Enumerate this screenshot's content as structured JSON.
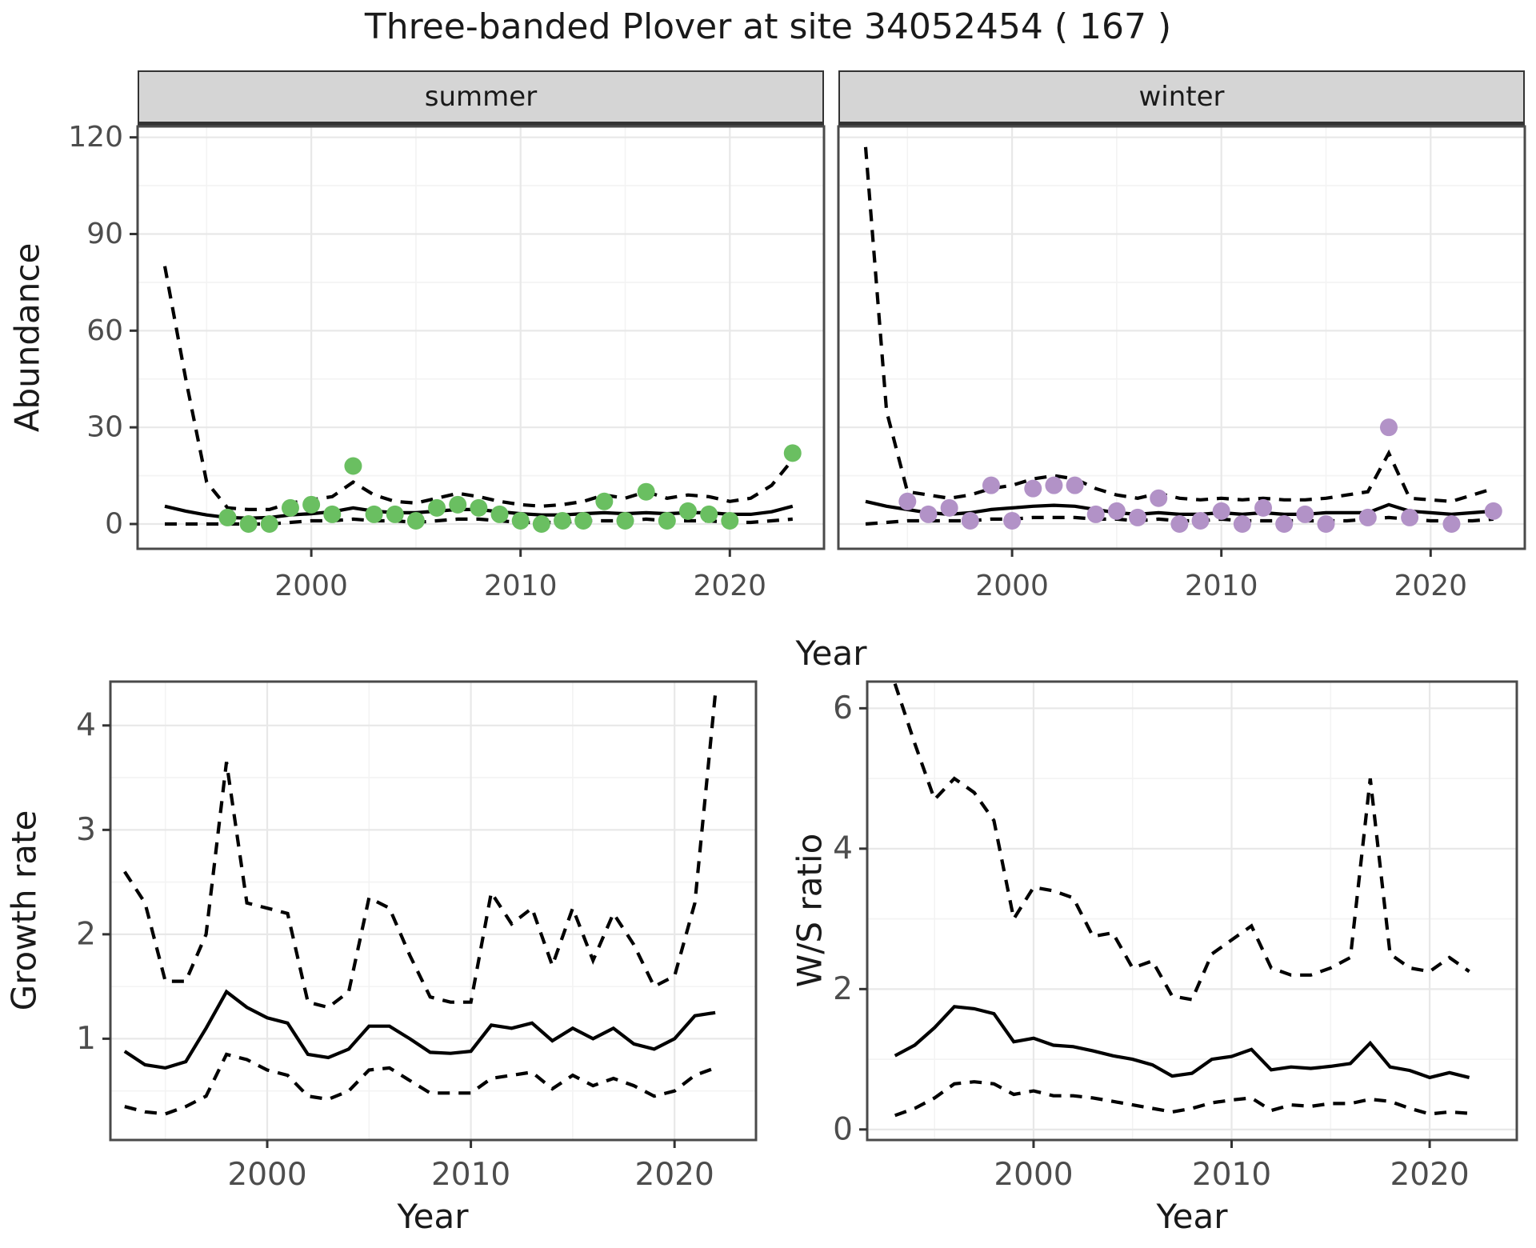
{
  "title": "Three-banded Plover at site 34052454 ( 167 )",
  "colors": {
    "summer_point": "#6ABF61",
    "winter_point": "#B292C7",
    "line": "#000000",
    "strip_bg": "#D5D5D5",
    "strip_border": "#333333",
    "panel_border": "#4A4A4A",
    "grid_major": "#E8E8E8",
    "grid_minor": "#F3F3F3",
    "tick_text": "#4D4D4D",
    "title_text": "#1A1A1A"
  },
  "chart_data": [
    {
      "id": "summer",
      "type": "scatter",
      "facet_label": "summer",
      "title": "Three-banded Plover at site 34052454 ( 167 )",
      "xlabel": "Year",
      "ylabel": "Abundance",
      "xlim": [
        1991.7,
        2024.5
      ],
      "ylim": [
        -7.7,
        123.4
      ],
      "xticks": [
        2000,
        2010,
        2020
      ],
      "yticks": [
        0,
        30,
        60,
        90,
        120
      ],
      "xminor": [
        1995,
        2005,
        2015
      ],
      "yminor": [
        15,
        45,
        75,
        105
      ],
      "grid": true,
      "legend": "none",
      "line_years": [
        1993,
        1994,
        1995,
        1996,
        1997,
        1998,
        1999,
        2000,
        2001,
        2002,
        2003,
        2004,
        2005,
        2006,
        2007,
        2008,
        2009,
        2010,
        2011,
        2012,
        2013,
        2014,
        2015,
        2016,
        2017,
        2018,
        2019,
        2020,
        2021,
        2022,
        2023
      ],
      "median": [
        5.5,
        4,
        2.8,
        2,
        1.8,
        2,
        2.8,
        3.2,
        3.8,
        5,
        4,
        3.5,
        3.5,
        4,
        4.5,
        4.5,
        3.8,
        3.2,
        2.8,
        2.8,
        3.2,
        3.5,
        3.2,
        3.5,
        3.2,
        3.5,
        3.5,
        3,
        3,
        3.8,
        5.5
      ],
      "upper": [
        80,
        45,
        13,
        5,
        4.5,
        4.5,
        6.5,
        7.5,
        8.5,
        13,
        9,
        7,
        6.5,
        8,
        9.5,
        8.5,
        7,
        6,
        5.5,
        6,
        7,
        9,
        8,
        10,
        8,
        9,
        8.5,
        7,
        8,
        12,
        20
      ],
      "lower": [
        0,
        0,
        0,
        0,
        0,
        0,
        0.5,
        1,
        1,
        1.5,
        1,
        1,
        0.5,
        1,
        1.5,
        1.5,
        1,
        0.5,
        0.5,
        0.5,
        1,
        1,
        1,
        1.5,
        1,
        1,
        1,
        0.5,
        0.5,
        1,
        1.5
      ],
      "point_years": [
        1996,
        1997,
        1998,
        1999,
        2000,
        2001,
        2002,
        2003,
        2004,
        2005,
        2006,
        2007,
        2008,
        2009,
        2010,
        2011,
        2012,
        2013,
        2014,
        2015,
        2016,
        2017,
        2018,
        2019,
        2020,
        2023
      ],
      "point_values": [
        2,
        0,
        0,
        5,
        6,
        3,
        18,
        3,
        3,
        1,
        5,
        6,
        5,
        3,
        1,
        0,
        1,
        1,
        7,
        1,
        10,
        1,
        4,
        3,
        1,
        22
      ],
      "point_color_key": "summer_point"
    },
    {
      "id": "winter",
      "type": "scatter",
      "facet_label": "winter",
      "title": "Three-banded Plover at site 34052454 ( 167 )",
      "xlabel": "Year",
      "ylabel": "Abundance",
      "xlim": [
        1991.7,
        2024.5
      ],
      "ylim": [
        -7.7,
        123.4
      ],
      "xticks": [
        2000,
        2010,
        2020
      ],
      "yticks": [
        0,
        30,
        60,
        90,
        120
      ],
      "xminor": [
        1995,
        2005,
        2015
      ],
      "yminor": [
        15,
        45,
        75,
        105
      ],
      "grid": true,
      "legend": "none",
      "line_years": [
        1993,
        1994,
        1995,
        1996,
        1997,
        1998,
        1999,
        2000,
        2001,
        2002,
        2003,
        2004,
        2005,
        2006,
        2007,
        2008,
        2009,
        2010,
        2011,
        2012,
        2013,
        2014,
        2015,
        2016,
        2017,
        2018,
        2019,
        2020,
        2021,
        2022,
        2023
      ],
      "median": [
        7,
        5.5,
        4.5,
        3.5,
        3,
        3.5,
        4.5,
        5,
        5.5,
        5.8,
        5.5,
        4.5,
        3.5,
        3,
        3.5,
        3,
        3,
        3.5,
        3,
        3.5,
        3,
        3,
        3.5,
        3.5,
        3.5,
        6,
        4,
        3.5,
        3,
        3.5,
        4
      ],
      "upper": [
        117,
        35,
        10,
        9,
        8,
        9,
        11,
        12,
        14,
        15,
        14,
        11,
        9,
        8,
        9.5,
        8,
        7.5,
        8,
        7.5,
        8,
        7.5,
        7.5,
        8,
        9,
        10,
        22,
        8,
        7.5,
        7,
        9,
        11
      ],
      "lower": [
        0,
        0.5,
        1,
        1,
        1,
        1,
        1.5,
        1.5,
        2,
        2,
        2,
        1.5,
        1.5,
        1,
        1.5,
        1,
        1,
        1.5,
        1,
        1,
        1,
        1,
        1,
        1,
        1.5,
        2,
        1.5,
        1,
        1,
        1,
        1.5
      ],
      "point_years": [
        1995,
        1996,
        1997,
        1998,
        1999,
        2000,
        2001,
        2002,
        2003,
        2004,
        2005,
        2006,
        2007,
        2008,
        2009,
        2010,
        2011,
        2012,
        2013,
        2014,
        2015,
        2017,
        2018,
        2019,
        2021,
        2023
      ],
      "point_values": [
        7,
        3,
        5,
        1,
        12,
        1,
        11,
        12,
        12,
        3,
        4,
        2,
        8,
        0,
        1,
        4,
        0,
        5,
        0,
        3,
        0,
        2,
        30,
        2,
        0,
        4
      ],
      "point_color_key": "winter_point"
    },
    {
      "id": "growth",
      "type": "line",
      "facet_label": "",
      "title": "",
      "xlabel": "Year",
      "ylabel": "Growth rate",
      "xlim": [
        1992.3,
        2024.0
      ],
      "ylim": [
        0.03,
        4.42
      ],
      "xticks": [
        2000,
        2010,
        2020
      ],
      "yticks": [
        1,
        2,
        3,
        4
      ],
      "xminor": [
        1995,
        2005,
        2015
      ],
      "yminor": [
        0.5,
        1.5,
        2.5,
        3.5
      ],
      "grid": true,
      "legend": "none",
      "line_years": [
        1993,
        1994,
        1995,
        1996,
        1997,
        1998,
        1999,
        2000,
        2001,
        2002,
        2003,
        2004,
        2005,
        2006,
        2007,
        2008,
        2009,
        2010,
        2011,
        2012,
        2013,
        2014,
        2015,
        2016,
        2017,
        2018,
        2019,
        2020,
        2021,
        2022
      ],
      "median": [
        0.88,
        0.75,
        0.72,
        0.78,
        1.1,
        1.45,
        1.3,
        1.2,
        1.15,
        0.85,
        0.82,
        0.9,
        1.12,
        1.12,
        1.0,
        0.87,
        0.86,
        0.88,
        1.13,
        1.1,
        1.15,
        0.98,
        1.1,
        1.0,
        1.1,
        0.95,
        0.9,
        1.0,
        1.22,
        1.25
      ],
      "upper": [
        2.6,
        2.3,
        1.55,
        1.55,
        2.0,
        3.65,
        2.3,
        2.25,
        2.2,
        1.35,
        1.3,
        1.45,
        2.35,
        2.25,
        1.8,
        1.4,
        1.35,
        1.35,
        2.4,
        2.1,
        2.25,
        1.7,
        2.25,
        1.75,
        2.2,
        1.9,
        1.5,
        1.6,
        2.3,
        4.3
      ],
      "lower": [
        0.35,
        0.3,
        0.28,
        0.35,
        0.45,
        0.85,
        0.8,
        0.7,
        0.65,
        0.45,
        0.42,
        0.5,
        0.7,
        0.72,
        0.6,
        0.48,
        0.48,
        0.48,
        0.62,
        0.65,
        0.68,
        0.52,
        0.65,
        0.55,
        0.62,
        0.55,
        0.45,
        0.5,
        0.65,
        0.72
      ],
      "point_years": [],
      "point_values": [],
      "point_color_key": ""
    },
    {
      "id": "ws",
      "type": "line",
      "facet_label": "",
      "title": "",
      "xlabel": "Year",
      "ylabel": "W/S ratio",
      "xlim": [
        1991.6,
        2024.4
      ],
      "ylim": [
        -0.15,
        6.38
      ],
      "xticks": [
        2000,
        2010,
        2020
      ],
      "yticks": [
        0,
        2,
        4,
        6
      ],
      "xminor": [
        1995,
        2005,
        2015
      ],
      "yminor": [
        1,
        3,
        5
      ],
      "grid": true,
      "legend": "none",
      "line_years": [
        1993,
        1994,
        1995,
        1996,
        1997,
        1998,
        1999,
        2000,
        2001,
        2002,
        2003,
        2004,
        2005,
        2006,
        2007,
        2008,
        2009,
        2010,
        2011,
        2012,
        2013,
        2014,
        2015,
        2016,
        2017,
        2018,
        2019,
        2020,
        2021,
        2022
      ],
      "median": [
        1.05,
        1.2,
        1.45,
        1.75,
        1.72,
        1.65,
        1.25,
        1.3,
        1.2,
        1.18,
        1.12,
        1.05,
        1.0,
        0.92,
        0.76,
        0.8,
        1.0,
        1.04,
        1.14,
        0.85,
        0.89,
        0.87,
        0.9,
        0.94,
        1.23,
        0.89,
        0.84,
        0.74,
        0.81,
        0.74
      ],
      "upper": [
        6.35,
        5.5,
        4.7,
        5.0,
        4.8,
        4.4,
        3.0,
        3.45,
        3.4,
        3.3,
        2.75,
        2.8,
        2.3,
        2.4,
        1.9,
        1.85,
        2.5,
        2.7,
        2.9,
        2.3,
        2.2,
        2.2,
        2.3,
        2.45,
        5.0,
        2.5,
        2.3,
        2.25,
        2.45,
        2.25
      ],
      "lower": [
        0.2,
        0.3,
        0.45,
        0.65,
        0.68,
        0.65,
        0.5,
        0.55,
        0.48,
        0.48,
        0.45,
        0.4,
        0.35,
        0.3,
        0.25,
        0.3,
        0.38,
        0.42,
        0.45,
        0.27,
        0.35,
        0.33,
        0.37,
        0.37,
        0.43,
        0.4,
        0.3,
        0.22,
        0.25,
        0.23
      ],
      "point_years": [],
      "point_values": [],
      "point_color_key": ""
    }
  ]
}
